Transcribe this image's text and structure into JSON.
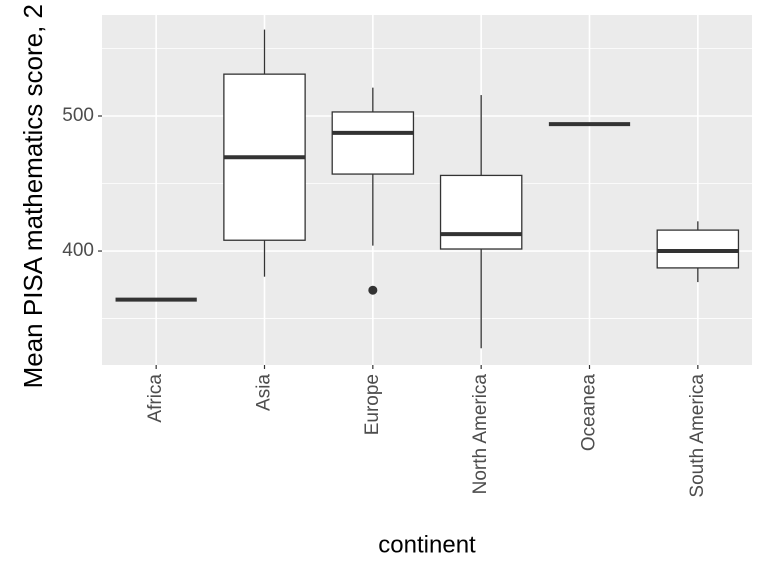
{
  "chart_data": {
    "type": "boxplot",
    "x_label": "continent",
    "y_label": "Mean PISA mathematics score, 2",
    "categories": [
      "Africa",
      "Asia",
      "Europe",
      "North America",
      "Oceanea",
      "South America"
    ],
    "min": [
      364,
      381,
      404,
      328,
      494,
      377
    ],
    "q1": [
      364,
      408,
      457,
      401.5,
      494,
      387.5
    ],
    "median": [
      364,
      469.5,
      487.5,
      412.5,
      494,
      400
    ],
    "q3": [
      364,
      531,
      503,
      456,
      494,
      415.5
    ],
    "max": [
      364,
      564,
      521,
      515.5,
      494,
      422
    ],
    "outliers": [
      [],
      [],
      [
        371
      ],
      [],
      [],
      []
    ],
    "ylim": [
      315.6,
      574.8
    ],
    "yticks": [
      400,
      500
    ],
    "y_minor_gridlines": [
      350,
      450,
      550
    ],
    "grid": true,
    "color": "#333333"
  }
}
